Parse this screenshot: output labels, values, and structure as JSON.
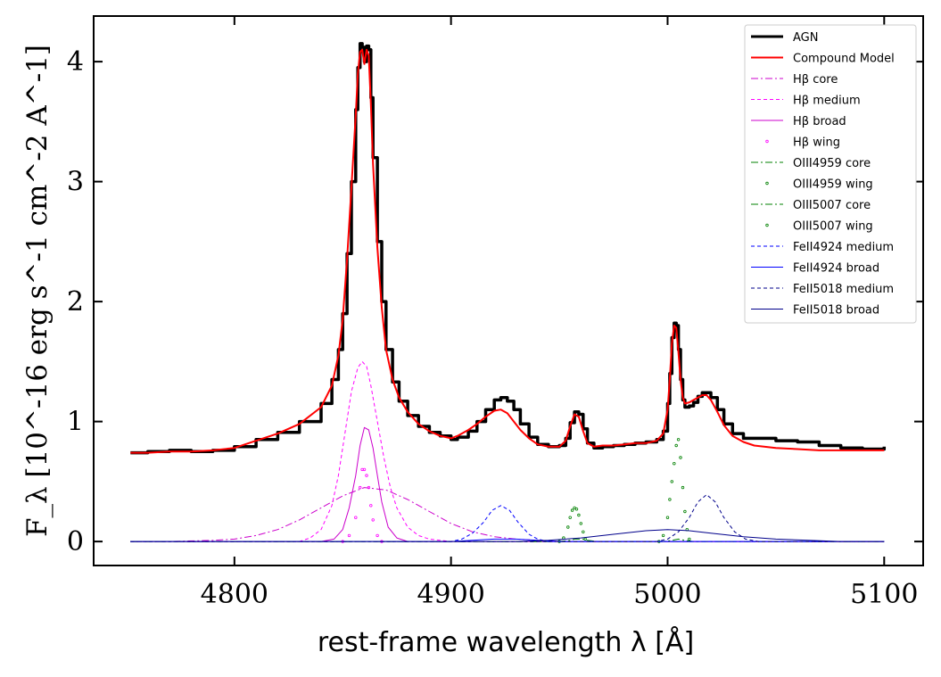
{
  "chart_data": {
    "type": "line",
    "xlabel": "rest-frame wavelength λ [Å]",
    "ylabel": "F_λ [10^-16 erg s^-1 cm^-2 A^-1]",
    "xlim": [
      4735,
      5118
    ],
    "ylim": [
      -0.2,
      4.38
    ],
    "xticks": [
      4800,
      4900,
      5000,
      5100
    ],
    "yticks": [
      0,
      1,
      2,
      3,
      4
    ],
    "x_tick_labels": [
      "4800",
      "4900",
      "5000",
      "5100"
    ],
    "y_tick_labels": [
      "0",
      "1",
      "2",
      "3",
      "4"
    ],
    "grid": false,
    "legend_position": "top-right",
    "legend": [
      {
        "label": "AGN",
        "color": "#000000",
        "style": "solid-thick"
      },
      {
        "label": "Compound Model",
        "color": "#ff0000",
        "style": "solid"
      },
      {
        "label": "Hβ core",
        "color": "#cc00cc",
        "style": "dashdot"
      },
      {
        "label": "Hβ medium",
        "color": "#ff00ff",
        "style": "dashed"
      },
      {
        "label": "Hβ broad",
        "color": "#cc00cc",
        "style": "solid"
      },
      {
        "label": "Hβ wing",
        "color": "#ff00ff",
        "style": "dots"
      },
      {
        "label": "OIII4959 core",
        "color": "#008000",
        "style": "dashdot"
      },
      {
        "label": "OIII4959 wing",
        "color": "#008000",
        "style": "dots"
      },
      {
        "label": "OIII5007 core",
        "color": "#008000",
        "style": "dashdot"
      },
      {
        "label": "OIII5007 wing",
        "color": "#008000",
        "style": "dots"
      },
      {
        "label": "FeII4924 medium",
        "color": "#0000ff",
        "style": "dashed"
      },
      {
        "label": "FeII4924 broad",
        "color": "#0000ff",
        "style": "solid"
      },
      {
        "label": "FeII5018 medium",
        "color": "#00008b",
        "style": "dashed"
      },
      {
        "label": "FeII5018 broad",
        "color": "#00008b",
        "style": "solid"
      }
    ],
    "series": [
      {
        "name": "AGN",
        "x": [
          4752,
          4760,
          4770,
          4780,
          4790,
          4800,
          4810,
          4820,
          4830,
          4840,
          4845,
          4848,
          4850,
          4852,
          4854,
          4856,
          4857,
          4858,
          4859,
          4860,
          4861,
          4862,
          4863,
          4864,
          4866,
          4868,
          4870,
          4873,
          4876,
          4880,
          4885,
          4890,
          4895,
          4900,
          4903,
          4908,
          4912,
          4916,
          4920,
          4923,
          4926,
          4929,
          4932,
          4936,
          4940,
          4945,
          4950,
          4953,
          4955,
          4957,
          4959,
          4961,
          4963,
          4966,
          4970,
          4975,
          4980,
          4985,
          4990,
          4995,
          4998,
          5000,
          5001,
          5002,
          5003,
          5004,
          5005,
          5006,
          5007,
          5008,
          5010,
          5012,
          5014,
          5016,
          5018,
          5020,
          5023,
          5026,
          5030,
          5035,
          5040,
          5050,
          5060,
          5070,
          5080,
          5090,
          5100
        ],
        "y": [
          0.74,
          0.75,
          0.76,
          0.75,
          0.76,
          0.79,
          0.85,
          0.91,
          1.0,
          1.15,
          1.35,
          1.6,
          1.9,
          2.4,
          3.0,
          3.6,
          3.95,
          4.15,
          4.12,
          4.0,
          4.13,
          4.1,
          3.7,
          3.2,
          2.5,
          2.0,
          1.6,
          1.33,
          1.17,
          1.05,
          0.96,
          0.91,
          0.88,
          0.85,
          0.87,
          0.92,
          1.0,
          1.1,
          1.18,
          1.2,
          1.17,
          1.1,
          0.98,
          0.87,
          0.81,
          0.79,
          0.8,
          0.86,
          0.99,
          1.08,
          1.06,
          0.94,
          0.82,
          0.78,
          0.79,
          0.8,
          0.81,
          0.82,
          0.83,
          0.85,
          0.92,
          1.15,
          1.4,
          1.7,
          1.82,
          1.8,
          1.6,
          1.35,
          1.18,
          1.12,
          1.13,
          1.16,
          1.21,
          1.24,
          1.24,
          1.2,
          1.1,
          0.98,
          0.9,
          0.86,
          0.86,
          0.84,
          0.83,
          0.8,
          0.78,
          0.77,
          0.79
        ]
      },
      {
        "name": "Compound Model",
        "x": [
          4752,
          4760,
          4770,
          4780,
          4790,
          4800,
          4810,
          4820,
          4830,
          4840,
          4845,
          4848,
          4850,
          4852,
          4854,
          4856,
          4857,
          4858,
          4859,
          4860,
          4861,
          4862,
          4863,
          4864,
          4866,
          4868,
          4870,
          4873,
          4876,
          4880,
          4885,
          4890,
          4895,
          4900,
          4903,
          4908,
          4912,
          4916,
          4920,
          4923,
          4926,
          4929,
          4932,
          4936,
          4940,
          4945,
          4950,
          4953,
          4955,
          4957,
          4959,
          4961,
          4963,
          4966,
          4970,
          4975,
          4980,
          4985,
          4990,
          4995,
          4998,
          5000,
          5001,
          5002,
          5003,
          5004,
          5005,
          5006,
          5007,
          5008,
          5010,
          5012,
          5014,
          5016,
          5018,
          5020,
          5023,
          5026,
          5030,
          5035,
          5040,
          5050,
          5060,
          5070,
          5080,
          5090,
          5100
        ],
        "y": [
          0.74,
          0.74,
          0.75,
          0.75,
          0.76,
          0.78,
          0.84,
          0.9,
          0.98,
          1.12,
          1.3,
          1.55,
          1.85,
          2.35,
          2.95,
          3.55,
          3.9,
          4.08,
          4.1,
          3.98,
          4.1,
          4.05,
          3.65,
          3.15,
          2.45,
          1.95,
          1.6,
          1.35,
          1.2,
          1.08,
          0.98,
          0.92,
          0.88,
          0.86,
          0.88,
          0.93,
          0.98,
          1.04,
          1.09,
          1.1,
          1.07,
          1.0,
          0.93,
          0.86,
          0.81,
          0.79,
          0.79,
          0.84,
          0.96,
          1.06,
          1.04,
          0.92,
          0.82,
          0.79,
          0.8,
          0.8,
          0.81,
          0.82,
          0.82,
          0.84,
          0.9,
          1.1,
          1.35,
          1.65,
          1.8,
          1.78,
          1.58,
          1.35,
          1.2,
          1.15,
          1.16,
          1.18,
          1.2,
          1.22,
          1.22,
          1.18,
          1.08,
          0.97,
          0.88,
          0.83,
          0.8,
          0.78,
          0.77,
          0.76,
          0.76,
          0.76,
          0.76
        ]
      },
      {
        "name": "Hβ core",
        "x": [
          4752,
          4770,
          4790,
          4800,
          4810,
          4820,
          4830,
          4840,
          4850,
          4860,
          4870,
          4880,
          4890,
          4900,
          4910,
          4920,
          4930,
          4940,
          4950,
          4970,
          5000,
          5050,
          5100
        ],
        "y": [
          0,
          0.0,
          0.01,
          0.02,
          0.05,
          0.1,
          0.18,
          0.28,
          0.38,
          0.45,
          0.43,
          0.35,
          0.25,
          0.15,
          0.08,
          0.04,
          0.02,
          0.01,
          0.0,
          0,
          0,
          0,
          0
        ]
      },
      {
        "name": "Hβ medium",
        "x": [
          4752,
          4830,
          4835,
          4840,
          4845,
          4848,
          4851,
          4854,
          4857,
          4859,
          4861,
          4863,
          4866,
          4869,
          4872,
          4875,
          4880,
          4885,
          4890,
          4895,
          4900,
          5100
        ],
        "y": [
          0,
          0,
          0.03,
          0.1,
          0.3,
          0.55,
          0.9,
          1.25,
          1.45,
          1.5,
          1.46,
          1.3,
          1.0,
          0.7,
          0.45,
          0.28,
          0.12,
          0.05,
          0.02,
          0.01,
          0,
          0
        ]
      },
      {
        "name": "Hβ broad",
        "x": [
          4752,
          4840,
          4846,
          4850,
          4853,
          4856,
          4858,
          4860,
          4862,
          4864,
          4866,
          4868,
          4871,
          4875,
          4880,
          5100
        ],
        "y": [
          0,
          0,
          0.02,
          0.1,
          0.28,
          0.55,
          0.8,
          0.95,
          0.93,
          0.78,
          0.55,
          0.33,
          0.12,
          0.03,
          0,
          0
        ]
      },
      {
        "name": "Hβ wing",
        "x": [
          4850,
          4853,
          4856,
          4858,
          4859,
          4860,
          4861,
          4862,
          4863,
          4864,
          4866,
          4868
        ],
        "y": [
          0,
          0.05,
          0.2,
          0.45,
          0.6,
          0.6,
          0.55,
          0.45,
          0.3,
          0.18,
          0.05,
          0
        ]
      },
      {
        "name": "OIII4959 core",
        "x": [
          4752,
          4950,
          4955,
          4957,
          4959,
          4961,
          4963,
          4968,
          5100
        ],
        "y": [
          0,
          0,
          0.01,
          0.02,
          0.02,
          0.02,
          0.01,
          0,
          0
        ]
      },
      {
        "name": "OIII4959 wing",
        "x": [
          4950,
          4952,
          4954,
          4955,
          4956,
          4957,
          4958,
          4959,
          4960,
          4961,
          4962
        ],
        "y": [
          0,
          0.03,
          0.12,
          0.2,
          0.26,
          0.28,
          0.27,
          0.22,
          0.15,
          0.08,
          0.02
        ]
      },
      {
        "name": "OIII5007 core",
        "x": [
          4752,
          4998,
          5002,
          5005,
          5008,
          5012,
          5100
        ],
        "y": [
          0,
          0,
          0.01,
          0.02,
          0.01,
          0,
          0
        ]
      },
      {
        "name": "OIII5007 wing",
        "x": [
          4996,
          4998,
          5000,
          5001,
          5002,
          5003,
          5004,
          5005,
          5006,
          5007,
          5008,
          5009,
          5010
        ],
        "y": [
          0,
          0.05,
          0.2,
          0.35,
          0.5,
          0.65,
          0.8,
          0.85,
          0.7,
          0.45,
          0.25,
          0.1,
          0.02
        ]
      },
      {
        "name": "FeII4924 medium",
        "x": [
          4752,
          4900,
          4905,
          4910,
          4915,
          4919,
          4923,
          4927,
          4931,
          4936,
          4940,
          4945,
          5100
        ],
        "y": [
          0,
          0,
          0.02,
          0.07,
          0.16,
          0.26,
          0.3,
          0.26,
          0.16,
          0.06,
          0.02,
          0,
          0
        ]
      },
      {
        "name": "FeII4924 broad",
        "x": [
          4752,
          4880,
          4900,
          4910,
          4920,
          4925,
          4930,
          4940,
          4950,
          4960,
          4970,
          5100
        ],
        "y": [
          0,
          0,
          0.0,
          0.01,
          0.02,
          0.02,
          0.02,
          0.01,
          0.0,
          0,
          0,
          0
        ]
      },
      {
        "name": "FeII5018 medium",
        "x": [
          4752,
          4995,
          5000,
          5005,
          5010,
          5014,
          5018,
          5022,
          5026,
          5031,
          5036,
          5042,
          5100
        ],
        "y": [
          0,
          0,
          0.02,
          0.08,
          0.2,
          0.33,
          0.39,
          0.33,
          0.2,
          0.08,
          0.02,
          0,
          0
        ]
      },
      {
        "name": "FeII5018 broad",
        "x": [
          4752,
          4930,
          4945,
          4960,
          4975,
          4990,
          5000,
          5010,
          5020,
          5035,
          5050,
          5065,
          5080,
          5100
        ],
        "y": [
          0,
          0,
          0.01,
          0.03,
          0.06,
          0.09,
          0.1,
          0.09,
          0.07,
          0.04,
          0.02,
          0.01,
          0,
          0
        ]
      }
    ]
  }
}
